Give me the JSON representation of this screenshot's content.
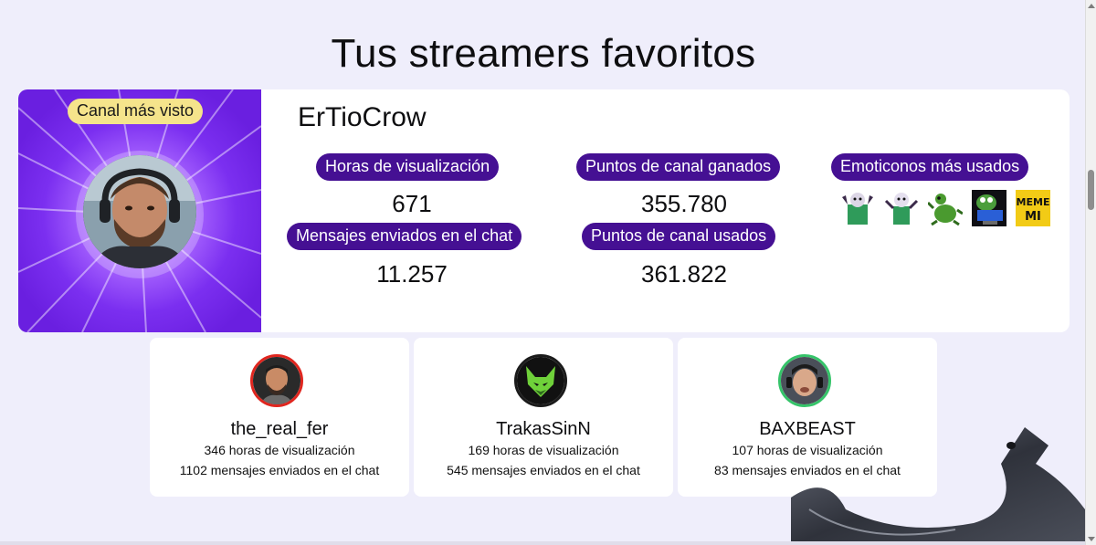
{
  "page": {
    "title": "Tus streamers favoritos"
  },
  "featured": {
    "badge": "Canal más visto",
    "name": "ErTioCrow",
    "stats": {
      "watch_hours_label": "Horas de visualización",
      "watch_hours_value": "671",
      "points_earned_label": "Puntos de canal ganados",
      "points_earned_value": "355.780",
      "emotes_label": "Emoticonos más usados",
      "messages_label": "Mensajes enviados en el chat",
      "messages_value": "11.257",
      "points_used_label": "Puntos de canal usados",
      "points_used_value": "361.822"
    },
    "emotes": [
      "crow-dance-emote",
      "crow-clap-emote",
      "frog-kneel-emote",
      "pepe-computer-emote",
      "meme-text-emote"
    ]
  },
  "others": [
    {
      "name": "the_real_fer",
      "hours": "346 horas de visualización",
      "messages": "1102 mensajes enviados en el chat",
      "ring_color": "#e0261f"
    },
    {
      "name": "TrakasSinN",
      "hours": "169 horas de visualización",
      "messages": "545 mensajes enviados en el chat",
      "ring_color": "#1b1b1b"
    },
    {
      "name": "BAXBEAST",
      "hours": "107 horas de visualización",
      "messages": "83 mensajes enviados en el chat",
      "ring_color": "#36c46a"
    }
  ],
  "colors": {
    "background": "#efeefb",
    "pill": "#451093",
    "badge": "#f5e48b",
    "hero": "#7b2ff0"
  }
}
